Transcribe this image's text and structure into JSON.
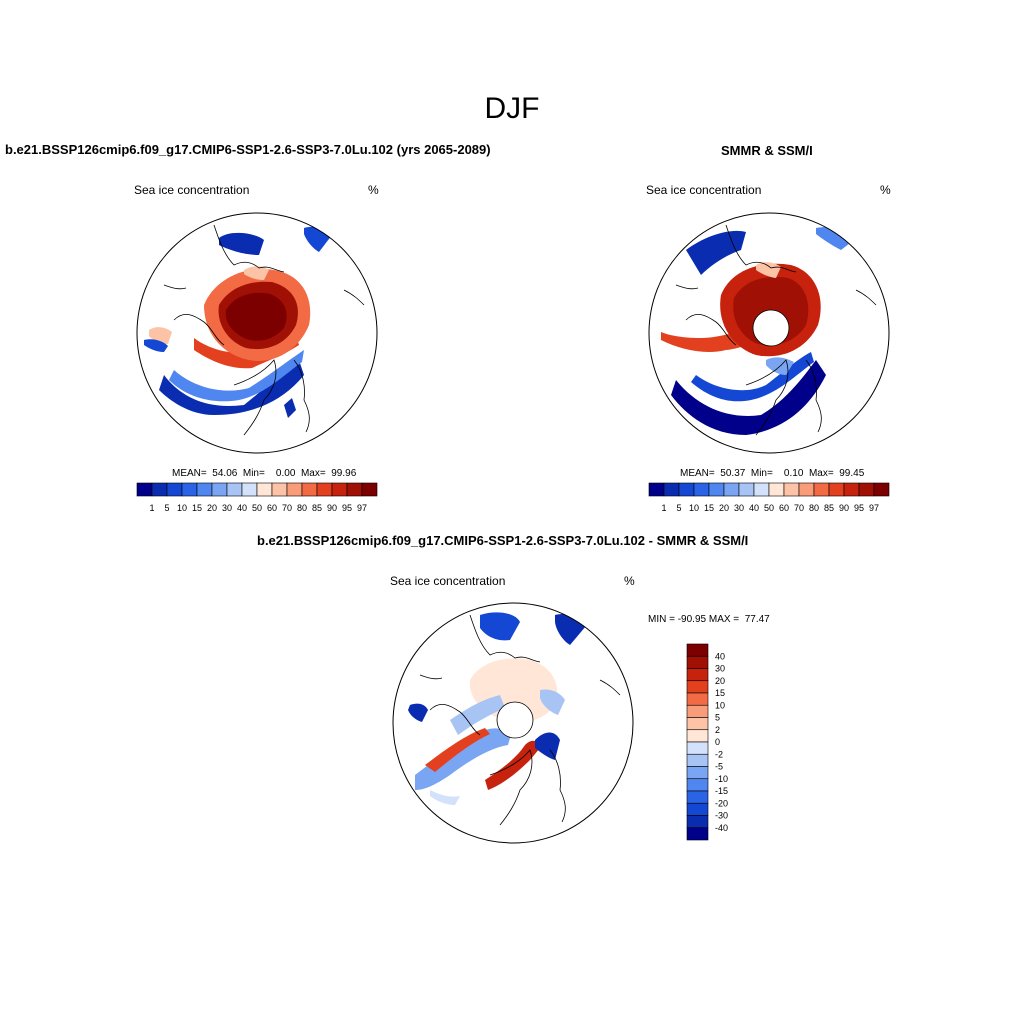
{
  "figure": {
    "title": "DJF"
  },
  "panels": [
    {
      "title": "b.e21.BSSP126cmip6.f09_g17.CMIP6-SSP1-2.6-SSP3-7.0Lu.102 (yrs 2065-2089)",
      "left_label": "Sea ice concentration",
      "right_label": "%",
      "stats": "MEAN=  54.06  Min=    0.00  Max=  99.96",
      "pole_hole": false
    },
    {
      "title": "SMMR & SSM/I",
      "left_label": "Sea ice concentration",
      "right_label": "%",
      "stats": "MEAN=  50.37  Min=    0.10  Max=  99.45",
      "pole_hole": true
    },
    {
      "title": "b.e21.BSSP126cmip6.f09_g17.CMIP6-SSP1-2.6-SSP3-7.0Lu.102 - SMMR & SSM/I",
      "left_label": "Sea ice concentration",
      "right_label": "%",
      "stats": "MIN = -90.95 MAX =  77.47",
      "pole_hole": true
    }
  ],
  "colorbars": {
    "concentration": {
      "levels": [
        "1",
        "5",
        "10",
        "15",
        "20",
        "30",
        "40",
        "50",
        "60",
        "70",
        "80",
        "85",
        "90",
        "95",
        "97"
      ],
      "colors": [
        "#00008b",
        "#0a2cb0",
        "#1447d4",
        "#2a63e6",
        "#4f86ef",
        "#7aa5f2",
        "#a7c4f5",
        "#d3e2fa",
        "#ffe6d6",
        "#fcc3a6",
        "#f99c79",
        "#f26b45",
        "#e3401f",
        "#c6220d",
        "#a01005",
        "#7d0000"
      ]
    },
    "difference": {
      "levels": [
        "40",
        "30",
        "20",
        "15",
        "10",
        "5",
        "2",
        "0",
        "-2",
        "-5",
        "-10",
        "-15",
        "-20",
        "-30",
        "-40"
      ],
      "colors": [
        "#7d0000",
        "#a01005",
        "#c6220d",
        "#e3401f",
        "#f26b45",
        "#f99c79",
        "#fcc3a6",
        "#ffe6d6",
        "#d3e2fa",
        "#a7c4f5",
        "#7aa5f2",
        "#4f86ef",
        "#2a63e6",
        "#1447d4",
        "#0a2cb0",
        "#00008b"
      ]
    }
  }
}
